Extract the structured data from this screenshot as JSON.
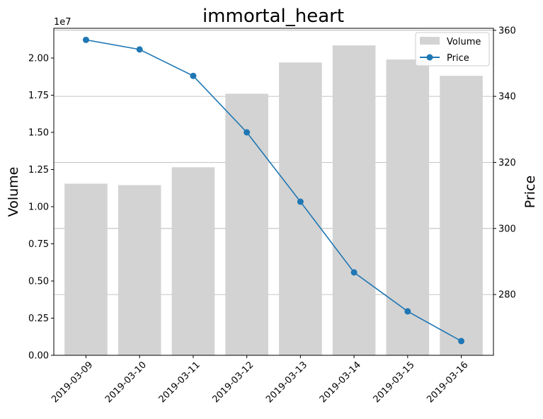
{
  "chart_data": {
    "type": "bar",
    "title": "immortal_heart",
    "categories": [
      "2019-03-09",
      "2019-03-10",
      "2019-03-11",
      "2019-03-12",
      "2019-03-13",
      "2019-03-14",
      "2019-03-15",
      "2019-03-16"
    ],
    "y_left": {
      "label": "Volume",
      "multiplier_label": "1e7",
      "ylim": [
        0,
        22000000
      ],
      "ticks": [
        0,
        2500000,
        5000000,
        7500000,
        10000000,
        12500000,
        15000000,
        17500000,
        20000000
      ],
      "tick_labels": [
        "0.00",
        "0.25",
        "0.50",
        "0.75",
        "1.00",
        "1.25",
        "1.50",
        "1.75",
        "2.00"
      ]
    },
    "y_right": {
      "label": "Price",
      "ylim": [
        261.6,
        360.6
      ],
      "ticks": [
        280,
        300,
        320,
        340,
        360
      ],
      "tick_labels": [
        "280",
        "300",
        "320",
        "340",
        "360"
      ]
    },
    "grid": "horizontal lines at right-axis ticks",
    "legend_position": "top-right",
    "series": [
      {
        "name": "Volume",
        "kind": "bar",
        "axis": "left",
        "color": "#d3d3d3",
        "values": [
          11550000,
          11450000,
          12650000,
          17600000,
          19700000,
          20850000,
          19900000,
          18800000
        ]
      },
      {
        "name": "Price",
        "kind": "line",
        "axis": "right",
        "color": "#1f77b4",
        "values": [
          357.1,
          354.2,
          346.2,
          329.1,
          308.1,
          286.7,
          274.9,
          265.9
        ]
      }
    ]
  }
}
